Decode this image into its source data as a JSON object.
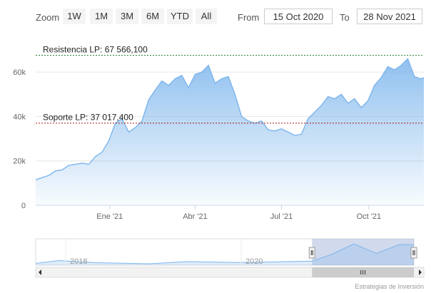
{
  "toolbar": {
    "zoom_label": "Zoom",
    "zoom_buttons": [
      "1W",
      "1M",
      "3M",
      "6M",
      "YTD",
      "All"
    ],
    "from_label": "From",
    "from_value": "15 Oct 2020",
    "to_label": "To",
    "to_value": "28 Nov 2021"
  },
  "chart_data": {
    "type": "area",
    "x": [
      "2020-10-15",
      "2020-10-22",
      "2020-10-29",
      "2020-11-05",
      "2020-11-12",
      "2020-11-19",
      "2020-11-26",
      "2020-12-03",
      "2020-12-10",
      "2020-12-17",
      "2020-12-24",
      "2020-12-31",
      "2021-01-07",
      "2021-01-14",
      "2021-01-21",
      "2021-01-28",
      "2021-02-04",
      "2021-02-11",
      "2021-02-18",
      "2021-02-25",
      "2021-03-04",
      "2021-03-11",
      "2021-03-18",
      "2021-03-25",
      "2021-04-01",
      "2021-04-08",
      "2021-04-15",
      "2021-04-22",
      "2021-04-29",
      "2021-05-06",
      "2021-05-13",
      "2021-05-20",
      "2021-05-27",
      "2021-06-03",
      "2021-06-10",
      "2021-06-17",
      "2021-06-24",
      "2021-07-01",
      "2021-07-08",
      "2021-07-15",
      "2021-07-22",
      "2021-07-29",
      "2021-08-05",
      "2021-08-12",
      "2021-08-19",
      "2021-08-26",
      "2021-09-02",
      "2021-09-09",
      "2021-09-16",
      "2021-09-23",
      "2021-09-30",
      "2021-10-07",
      "2021-10-14",
      "2021-10-21",
      "2021-10-28",
      "2021-11-04",
      "2021-11-11",
      "2021-11-18",
      "2021-11-25",
      "2021-11-28"
    ],
    "values": [
      11500,
      12500,
      13500,
      15500,
      16000,
      18000,
      18500,
      19000,
      18500,
      22000,
      24000,
      29000,
      37000,
      39000,
      33000,
      35000,
      38000,
      47500,
      52000,
      56000,
      54000,
      57000,
      58500,
      53000,
      59000,
      60000,
      63000,
      55000,
      57000,
      58000,
      50000,
      40000,
      38000,
      37000,
      38000,
      34000,
      33500,
      34500,
      33000,
      31500,
      32000,
      39000,
      42000,
      45000,
      49000,
      48000,
      50000,
      46000,
      48000,
      44000,
      47000,
      54000,
      57500,
      62500,
      61000,
      63000,
      66000,
      58000,
      57000,
      57500
    ],
    "y_ticks": [
      "0",
      "20k",
      "40k",
      "60k"
    ],
    "ylim": [
      0,
      70000
    ],
    "x_ticks": [
      "Ene '21",
      "Abr '21",
      "Jul '21",
      "Oct '21"
    ],
    "x_tick_dates": [
      "2021-01-01",
      "2021-04-01",
      "2021-07-01",
      "2021-10-01"
    ],
    "resistance": {
      "label": "Resistencia LP: 67 566,100",
      "value": 67566.1,
      "color": "#1a7a2e"
    },
    "support": {
      "label": "Soporte LP: 37 017,400",
      "value": 37017.4,
      "color": "#b01818"
    },
    "navigator": {
      "labels": [
        "2018",
        "2020"
      ],
      "x": [
        "2017-10-01",
        "2018-01-01",
        "2018-06-01",
        "2019-01-01",
        "2019-06-01",
        "2020-01-01",
        "2020-06-01",
        "2020-10-15",
        "2021-01-01",
        "2021-04-01",
        "2021-07-01",
        "2021-10-01",
        "2021-11-28"
      ],
      "values": [
        5000,
        13000,
        7000,
        4000,
        10000,
        7500,
        9500,
        11500,
        30000,
        60000,
        33000,
        58000,
        57500
      ]
    },
    "colors": {
      "line": "#7cb5ec",
      "fill_top": "#7cb5ec",
      "fill_bottom": "#ffffff",
      "grid": "#e6e6e6"
    },
    "grid": true,
    "legend": "none"
  },
  "credit": "Estrategias de Inversión"
}
